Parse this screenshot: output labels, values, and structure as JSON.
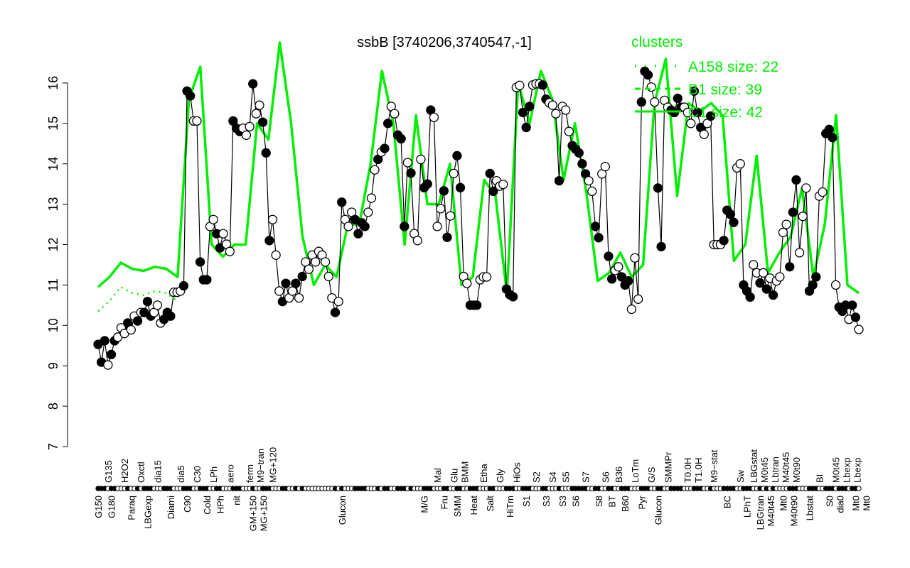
{
  "chart_data": {
    "type": "line",
    "title": "ssbB [3740206,3740547,-1]",
    "xlabel": "",
    "ylabel": "",
    "ylim": [
      7,
      16.5
    ],
    "yticks": [
      7,
      8,
      9,
      10,
      11,
      12,
      13,
      14,
      15,
      16
    ],
    "grid": false,
    "colors": {
      "points_line": "#000000",
      "clusters": "#00ee00"
    },
    "legend": {
      "title": "clusters",
      "placement": "top-right",
      "entries": [
        {
          "label": "A158 size: 22",
          "style": "dotted"
        },
        {
          "label": "B1 size: 39",
          "style": "dashed"
        },
        {
          "label": "C1 size: 42",
          "style": "solid"
        }
      ]
    },
    "points": [
      [
        9.53,
        1
      ],
      [
        9.09,
        1
      ],
      [
        9.62,
        1
      ],
      [
        9.02,
        0
      ],
      [
        9.28,
        1
      ],
      [
        9.62,
        1
      ],
      [
        9.71,
        0
      ],
      [
        9.94,
        0
      ],
      [
        9.8,
        0
      ],
      [
        10.06,
        1
      ],
      [
        9.89,
        0
      ],
      [
        10.23,
        0
      ],
      [
        10.11,
        1
      ],
      [
        10.32,
        0
      ],
      [
        10.32,
        1
      ],
      [
        10.59,
        1
      ],
      [
        10.23,
        1
      ],
      [
        10.32,
        0
      ],
      [
        10.5,
        0
      ],
      [
        10.06,
        0
      ],
      [
        10.15,
        1
      ],
      [
        10.32,
        1
      ],
      [
        10.23,
        1
      ],
      [
        10.82,
        0
      ],
      [
        10.82,
        0
      ],
      [
        10.85,
        0
      ],
      [
        10.98,
        1
      ],
      [
        15.8,
        1
      ],
      [
        15.68,
        1
      ],
      [
        15.06,
        0
      ],
      [
        15.06,
        0
      ],
      [
        11.57,
        1
      ],
      [
        11.13,
        1
      ],
      [
        11.13,
        1
      ],
      [
        12.45,
        0
      ],
      [
        12.62,
        0
      ],
      [
        12.27,
        1
      ],
      [
        11.92,
        1
      ],
      [
        12.27,
        0
      ],
      [
        12.01,
        0
      ],
      [
        11.83,
        0
      ],
      [
        15.06,
        1
      ],
      [
        14.88,
        1
      ],
      [
        14.8,
        1
      ],
      [
        14.88,
        0
      ],
      [
        14.71,
        0
      ],
      [
        14.92,
        0
      ],
      [
        15.98,
        1
      ],
      [
        15.24,
        0
      ],
      [
        15.45,
        0
      ],
      [
        15.03,
        1
      ],
      [
        14.27,
        1
      ],
      [
        12.1,
        1
      ],
      [
        12.62,
        0
      ],
      [
        11.74,
        0
      ],
      [
        10.85,
        0
      ],
      [
        10.59,
        1
      ],
      [
        11.04,
        1
      ],
      [
        10.68,
        0
      ],
      [
        10.85,
        0
      ],
      [
        11.04,
        1
      ],
      [
        10.68,
        0
      ],
      [
        11.21,
        1
      ],
      [
        11.57,
        0
      ],
      [
        11.39,
        0
      ],
      [
        11.74,
        0
      ],
      [
        11.57,
        0
      ],
      [
        11.83,
        0
      ],
      [
        11.74,
        0
      ],
      [
        11.57,
        0
      ],
      [
        11.21,
        0
      ],
      [
        10.68,
        0
      ],
      [
        10.32,
        1
      ],
      [
        10.59,
        0
      ],
      [
        13.05,
        1
      ],
      [
        12.62,
        0
      ],
      [
        12.45,
        0
      ],
      [
        12.8,
        0
      ],
      [
        12.62,
        1
      ],
      [
        12.27,
        1
      ],
      [
        12.54,
        1
      ],
      [
        12.45,
        1
      ],
      [
        12.8,
        0
      ],
      [
        13.15,
        0
      ],
      [
        13.85,
        0
      ],
      [
        14.11,
        1
      ],
      [
        14.29,
        0
      ],
      [
        14.38,
        1
      ],
      [
        15.0,
        1
      ],
      [
        15.42,
        0
      ],
      [
        15.24,
        0
      ],
      [
        14.71,
        1
      ],
      [
        14.62,
        1
      ],
      [
        12.45,
        1
      ],
      [
        14.03,
        0
      ],
      [
        13.77,
        1
      ],
      [
        12.27,
        0
      ],
      [
        12.1,
        0
      ],
      [
        14.11,
        0
      ],
      [
        13.41,
        1
      ],
      [
        13.5,
        1
      ],
      [
        15.33,
        1
      ],
      [
        15.15,
        0
      ],
      [
        12.45,
        0
      ],
      [
        12.89,
        0
      ],
      [
        13.33,
        1
      ],
      [
        12.18,
        1
      ],
      [
        12.71,
        0
      ],
      [
        13.76,
        0
      ],
      [
        14.2,
        1
      ],
      [
        13.41,
        1
      ],
      [
        11.21,
        0
      ],
      [
        11.04,
        0
      ],
      [
        10.5,
        1
      ],
      [
        10.5,
        1
      ],
      [
        10.5,
        1
      ],
      [
        11.13,
        0
      ],
      [
        11.2,
        0
      ],
      [
        11.2,
        0
      ],
      [
        13.76,
        1
      ],
      [
        13.32,
        1
      ],
      [
        13.58,
        0
      ],
      [
        13.45,
        0
      ],
      [
        13.49,
        0
      ],
      [
        10.9,
        1
      ],
      [
        10.76,
        1
      ],
      [
        10.71,
        1
      ],
      [
        15.89,
        0
      ],
      [
        15.94,
        0
      ],
      [
        15.27,
        1
      ],
      [
        14.9,
        1
      ],
      [
        15.42,
        1
      ],
      [
        15.95,
        0
      ],
      [
        15.98,
        0
      ],
      [
        15.98,
        0
      ],
      [
        15.95,
        1
      ],
      [
        15.6,
        1
      ],
      [
        15.51,
        0
      ],
      [
        15.45,
        0
      ],
      [
        15.24,
        0
      ],
      [
        13.58,
        1
      ],
      [
        15.42,
        0
      ],
      [
        15.33,
        0
      ],
      [
        14.8,
        0
      ],
      [
        14.45,
        1
      ],
      [
        14.36,
        1
      ],
      [
        14.27,
        1
      ],
      [
        14.0,
        1
      ],
      [
        13.75,
        1
      ],
      [
        13.58,
        0
      ],
      [
        13.32,
        0
      ],
      [
        12.45,
        1
      ],
      [
        12.17,
        1
      ],
      [
        13.75,
        0
      ],
      [
        13.93,
        0
      ],
      [
        11.71,
        1
      ],
      [
        11.15,
        1
      ],
      [
        11.36,
        0
      ],
      [
        11.45,
        0
      ],
      [
        11.2,
        1
      ],
      [
        11.0,
        1
      ],
      [
        11.1,
        1
      ],
      [
        10.4,
        0
      ],
      [
        11.67,
        0
      ],
      [
        10.65,
        0
      ],
      [
        15.53,
        1
      ],
      [
        16.29,
        1
      ],
      [
        16.2,
        1
      ],
      [
        15.9,
        0
      ],
      [
        15.53,
        0
      ],
      [
        13.4,
        1
      ],
      [
        11.95,
        1
      ],
      [
        15.57,
        0
      ],
      [
        15.4,
        0
      ],
      [
        15.33,
        1
      ],
      [
        15.27,
        1
      ],
      [
        15.62,
        1
      ],
      [
        15.4,
        1
      ],
      [
        15.4,
        0
      ],
      [
        15.27,
        0
      ],
      [
        15.0,
        0
      ],
      [
        15.8,
        1
      ],
      [
        15.27,
        1
      ],
      [
        14.9,
        1
      ],
      [
        14.73,
        0
      ],
      [
        15.0,
        0
      ],
      [
        15.18,
        1
      ],
      [
        12.0,
        0
      ],
      [
        12.0,
        0
      ],
      [
        12.0,
        0
      ],
      [
        12.1,
        1
      ],
      [
        12.85,
        1
      ],
      [
        12.75,
        1
      ],
      [
        12.55,
        1
      ],
      [
        13.9,
        0
      ],
      [
        14.0,
        0
      ],
      [
        11.0,
        1
      ],
      [
        10.85,
        1
      ],
      [
        10.7,
        1
      ],
      [
        11.5,
        0
      ],
      [
        11.3,
        0
      ],
      [
        11.05,
        1
      ],
      [
        11.3,
        0
      ],
      [
        10.9,
        1
      ],
      [
        11.17,
        0
      ],
      [
        10.75,
        1
      ],
      [
        11.1,
        0
      ],
      [
        11.2,
        0
      ],
      [
        12.3,
        0
      ],
      [
        12.5,
        0
      ],
      [
        11.45,
        1
      ],
      [
        12.8,
        1
      ],
      [
        13.6,
        1
      ],
      [
        11.8,
        0
      ],
      [
        12.7,
        0
      ],
      [
        13.4,
        0
      ],
      [
        10.85,
        1
      ],
      [
        11.0,
        1
      ],
      [
        11.2,
        1
      ],
      [
        13.2,
        0
      ],
      [
        13.3,
        0
      ],
      [
        14.75,
        1
      ],
      [
        14.85,
        1
      ],
      [
        14.65,
        1
      ],
      [
        11.0,
        0
      ],
      [
        10.45,
        1
      ],
      [
        10.35,
        1
      ],
      [
        10.5,
        1
      ],
      [
        10.15,
        0
      ],
      [
        10.5,
        1
      ],
      [
        10.2,
        1
      ],
      [
        9.9,
        0
      ]
    ],
    "cluster_line": [
      10.95,
      11.2,
      11.55,
      11.4,
      11.35,
      11.45,
      11.4,
      11.2,
      15.6,
      16.4,
      12.0,
      11.7,
      12.0,
      12.0,
      15.0,
      14.6,
      17.0,
      15.0,
      12.2,
      11.0,
      11.5,
      11.2,
      12.5,
      12.5,
      14.0,
      16.3,
      15.0,
      12.0,
      15.2,
      13.0,
      13.0,
      14.0,
      11.0,
      11.2,
      13.6,
      13.2,
      10.8,
      16.0,
      15.0,
      16.3,
      15.6,
      13.6,
      15.0,
      13.3,
      11.1,
      11.3,
      11.8,
      11.2,
      11.5,
      15.5,
      16.6,
      13.2,
      15.5,
      15.3,
      15.5,
      15.2,
      11.6,
      12.0,
      14.2,
      11.3,
      11.8,
      12.2,
      13.4,
      11.2,
      12.5,
      15.2,
      11.0,
      10.8
    ],
    "tick_labels": [
      {
        "i": 1,
        "label": "G150",
        "row": "bottom"
      },
      {
        "i": 4,
        "label": "G135",
        "row": "top"
      },
      {
        "i": 5,
        "label": "G180",
        "row": "bottom"
      },
      {
        "i": 9,
        "label": "H2O2",
        "row": "top"
      },
      {
        "i": 11,
        "label": "Paraq",
        "row": "bottom"
      },
      {
        "i": 14,
        "label": "Oxctl",
        "row": "top"
      },
      {
        "i": 16,
        "label": "LBGexp",
        "row": "bottom"
      },
      {
        "i": 19,
        "label": "dia15",
        "row": "top"
      },
      {
        "i": 23,
        "label": "Diami",
        "row": "bottom"
      },
      {
        "i": 26,
        "label": "dia5",
        "row": "top"
      },
      {
        "i": 28,
        "label": "C90",
        "row": "bottom"
      },
      {
        "i": 31,
        "label": "C30",
        "row": "top"
      },
      {
        "i": 34,
        "label": "Cold",
        "row": "bottom"
      },
      {
        "i": 36,
        "label": "LPh",
        "row": "top"
      },
      {
        "i": 38,
        "label": "HPh",
        "row": "bottom"
      },
      {
        "i": 41,
        "label": "aero",
        "row": "top"
      },
      {
        "i": 43,
        "label": "nit",
        "row": "bottom"
      },
      {
        "i": 47,
        "label": "ferm",
        "row": "top"
      },
      {
        "i": 48,
        "label": "GM+150",
        "row": "bottom"
      },
      {
        "i": 49,
        "label": "M9−tran",
        "row": "top"
      },
      {
        "i": 51,
        "label": "MG+150",
        "row": "bottom"
      },
      {
        "i": 54,
        "label": "MG+120",
        "row": "top"
      },
      {
        "i": 75,
        "label": "Glucon",
        "row": "bottom"
      },
      {
        "i": 100,
        "label": "M/G",
        "row": "bottom"
      },
      {
        "i": 104,
        "label": "Mal",
        "row": "top"
      },
      {
        "i": 106,
        "label": "Fru",
        "row": "bottom"
      },
      {
        "i": 109,
        "label": "Glu",
        "row": "top"
      },
      {
        "i": 110,
        "label": "SMM",
        "row": "bottom"
      },
      {
        "i": 112,
        "label": "BMM",
        "row": "top"
      },
      {
        "i": 115,
        "label": "Heat",
        "row": "bottom"
      },
      {
        "i": 118,
        "label": "Etha",
        "row": "top"
      },
      {
        "i": 120,
        "label": "Salt",
        "row": "bottom"
      },
      {
        "i": 123,
        "label": "Gly",
        "row": "top"
      },
      {
        "i": 126,
        "label": "HiTm",
        "row": "bottom"
      },
      {
        "i": 128,
        "label": "HiOs",
        "row": "top"
      },
      {
        "i": 131,
        "label": "S1",
        "row": "bottom"
      },
      {
        "i": 134,
        "label": "S2",
        "row": "top"
      },
      {
        "i": 137,
        "label": "S3",
        "row": "bottom"
      },
      {
        "i": 139,
        "label": "S4",
        "row": "top"
      },
      {
        "i": 142,
        "label": "S3",
        "row": "bottom"
      },
      {
        "i": 143,
        "label": "S5",
        "row": "top"
      },
      {
        "i": 146,
        "label": "S6",
        "row": "bottom"
      },
      {
        "i": 149,
        "label": "S7",
        "row": "top"
      },
      {
        "i": 153,
        "label": "S8",
        "row": "bottom"
      },
      {
        "i": 155,
        "label": "S6",
        "row": "top"
      },
      {
        "i": 157,
        "label": "BT",
        "row": "bottom"
      },
      {
        "i": 159,
        "label": "B36",
        "row": "top"
      },
      {
        "i": 161,
        "label": "B60",
        "row": "bottom"
      },
      {
        "i": 164,
        "label": "LoTm",
        "row": "top"
      },
      {
        "i": 166,
        "label": "Pyr",
        "row": "bottom"
      },
      {
        "i": 169,
        "label": "G/S",
        "row": "top"
      },
      {
        "i": 171,
        "label": "Glucon",
        "row": "bottom"
      },
      {
        "i": 174,
        "label": "SMMPr",
        "row": "top"
      },
      {
        "i": 180,
        "label": "T0.0H",
        "row": "top"
      },
      {
        "i": 183,
        "label": "T1.0H",
        "row": "top"
      },
      {
        "i": 188,
        "label": "M9−stat",
        "row": "top"
      },
      {
        "i": 192,
        "label": "BC",
        "row": "bottom"
      },
      {
        "i": 196,
        "label": "Sw",
        "row": "top"
      },
      {
        "i": 198,
        "label": "LPhT",
        "row": "bottom"
      },
      {
        "i": 200,
        "label": "LBGstat",
        "row": "top"
      },
      {
        "i": 202,
        "label": "LBGtran",
        "row": "bottom"
      },
      {
        "i": 203,
        "label": "M0t45",
        "row": "top"
      },
      {
        "i": 204,
        "label": "M40t45",
        "row": "bottom"
      },
      {
        "i": 205,
        "label": "Lbtran",
        "row": "top"
      },
      {
        "i": 207,
        "label": "M40t45",
        "row": "top"
      },
      {
        "i": 209,
        "label": "Mt0",
        "row": "bottom"
      },
      {
        "i": 211,
        "label": "M40t90",
        "row": "bottom"
      },
      {
        "i": 213,
        "label": "M0t90",
        "row": "top"
      },
      {
        "i": 217,
        "label": "Lbstat",
        "row": "bottom"
      },
      {
        "i": 220,
        "label": "BI",
        "row": "top"
      },
      {
        "i": 223,
        "label": "S0",
        "row": "bottom"
      },
      {
        "i": 225,
        "label": "M0t45",
        "row": "top"
      },
      {
        "i": 226,
        "label": "dia0",
        "row": "bottom"
      },
      {
        "i": 228,
        "label": "Lbexp",
        "row": "top"
      },
      {
        "i": 229,
        "label": "Lbexp",
        "row": "top"
      },
      {
        "i": 231,
        "label": "Mt0",
        "row": "bottom"
      },
      {
        "i": 232,
        "label": "Mt0",
        "row": "bottom"
      }
    ]
  }
}
